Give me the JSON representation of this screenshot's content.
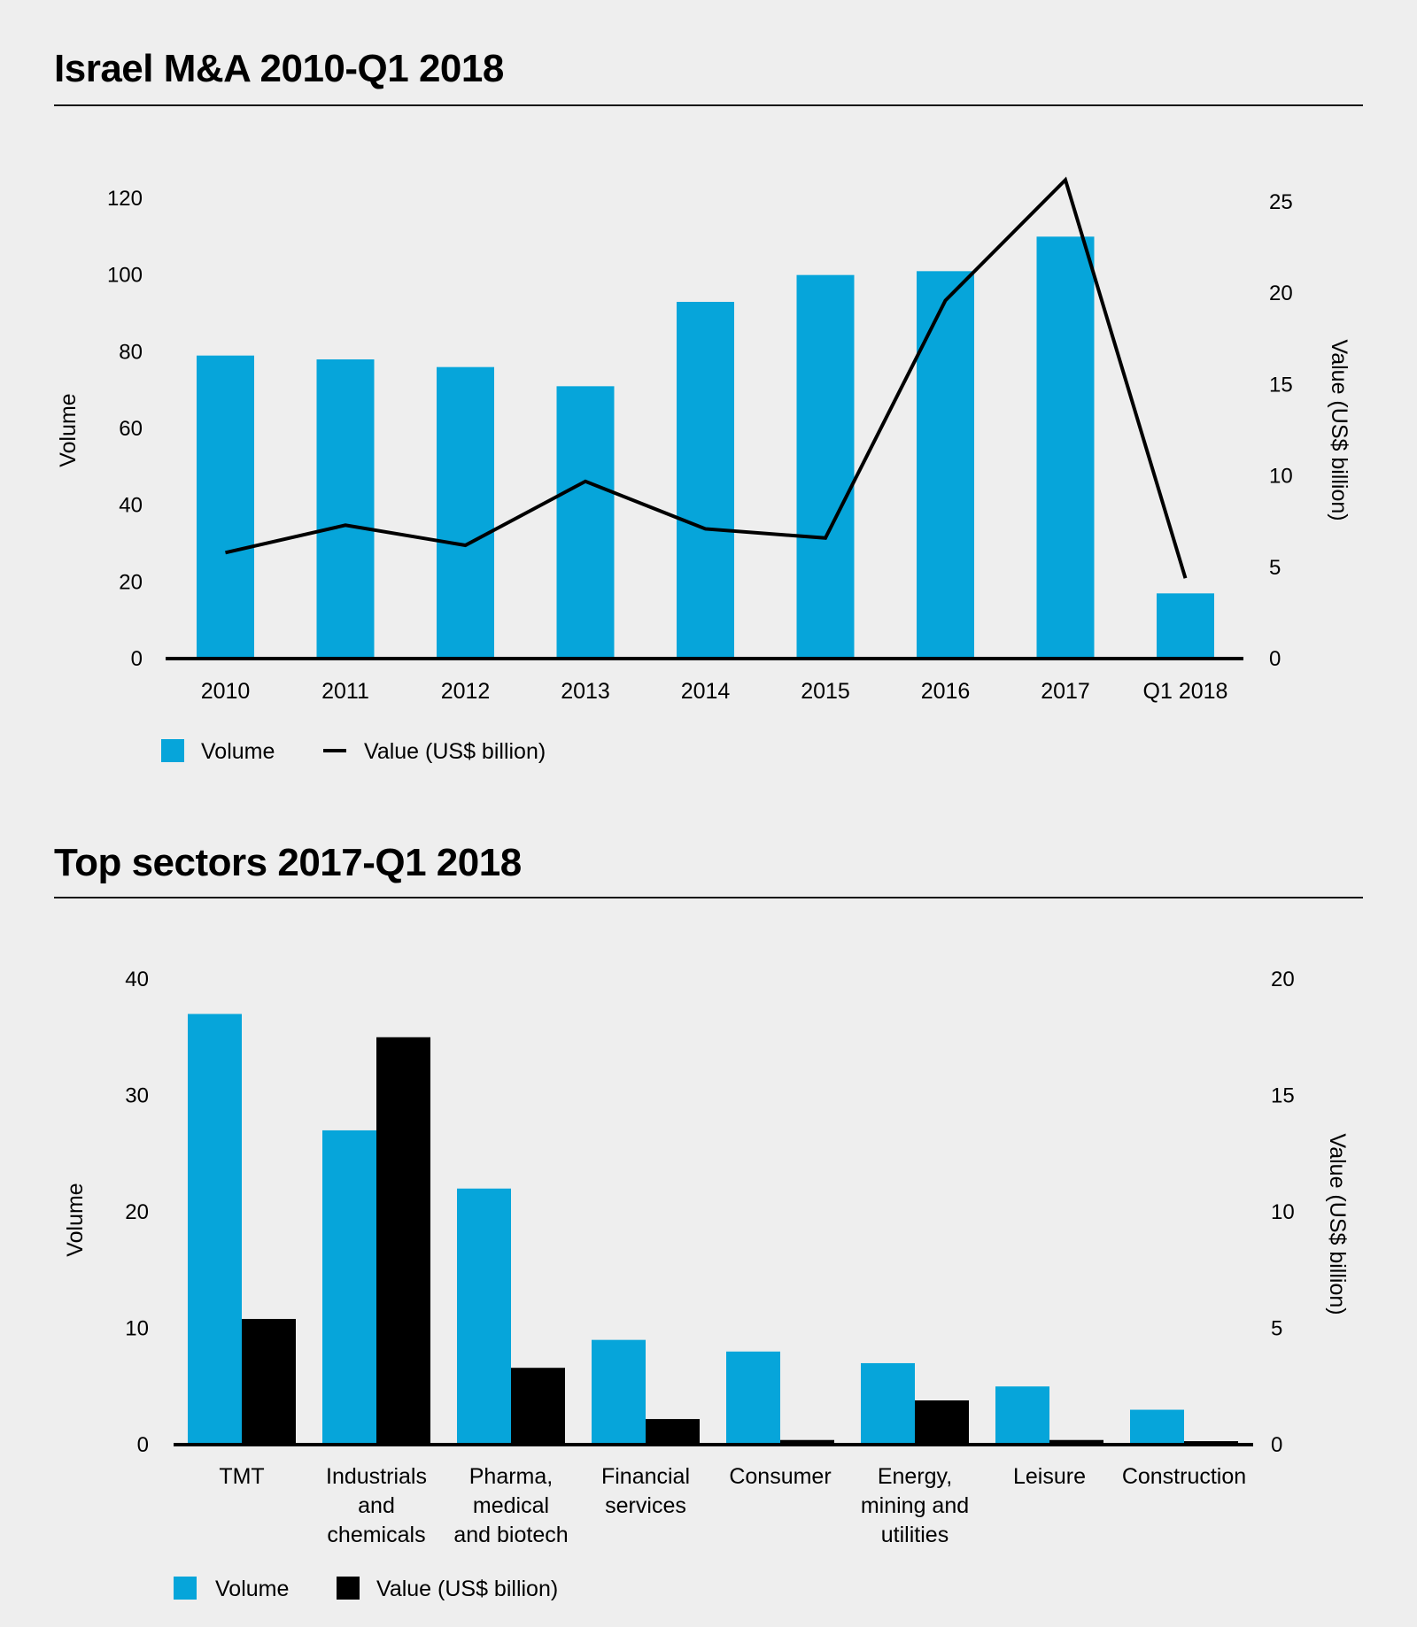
{
  "page": {
    "background": "#eeeeee",
    "colors": {
      "volume": "#06a5da",
      "value": "#000000",
      "axis": "#000000"
    }
  },
  "chart_data": [
    {
      "id": "israel-ma",
      "type": "bar+line",
      "title": "Israel M&A 2010-Q1 2018",
      "categories": [
        "2010",
        "2011",
        "2012",
        "2013",
        "2014",
        "2015",
        "2016",
        "2017",
        "Q1 2018"
      ],
      "series": [
        {
          "name": "Volume",
          "type": "bar",
          "axis": "left",
          "values": [
            79,
            78,
            76,
            71,
            93,
            100,
            101,
            110,
            17
          ]
        },
        {
          "name": "Value (US$ billion)",
          "type": "line",
          "axis": "right",
          "values": [
            5.8,
            7.3,
            6.2,
            9.7,
            7.1,
            6.6,
            19.6,
            26.2,
            4.4
          ]
        }
      ],
      "ylabel": "Volume",
      "ylim": [
        0,
        120
      ],
      "yticks": [
        0,
        20,
        40,
        60,
        80,
        100,
        120
      ],
      "y2label": "Value (US$ billion)",
      "y2lim": [
        0,
        25
      ],
      "y2ticks": [
        0,
        5,
        10,
        15,
        20,
        25
      ],
      "grid": false,
      "legend": {
        "placement": "bottom-left",
        "items": [
          {
            "label": "Volume",
            "marker": "square"
          },
          {
            "label": "Value (US$ billion)",
            "marker": "line"
          }
        ]
      }
    },
    {
      "id": "top-sectors",
      "type": "bar",
      "title": "Top sectors 2017-Q1 2018",
      "categories": [
        [
          "TMT"
        ],
        [
          "Industrials",
          "and",
          "chemicals"
        ],
        [
          "Pharma,",
          "medical",
          "and biotech"
        ],
        [
          "Financial",
          "services"
        ],
        [
          "Consumer"
        ],
        [
          "Energy,",
          "mining and",
          "utilities"
        ],
        [
          "Leisure"
        ],
        [
          "Construction"
        ]
      ],
      "series": [
        {
          "name": "Volume",
          "axis": "left",
          "values": [
            37,
            27,
            22,
            9,
            8,
            7,
            5,
            3
          ]
        },
        {
          "name": "Value (US$ billion)",
          "axis": "right",
          "values": [
            5.4,
            17.5,
            3.3,
            1.1,
            0.2,
            1.9,
            0.2,
            0.15
          ]
        }
      ],
      "ylabel": "Volume",
      "ylim": [
        0,
        40
      ],
      "yticks": [
        0,
        10,
        20,
        30,
        40
      ],
      "y2label": "Value (US$ billion)",
      "y2lim": [
        0,
        20
      ],
      "y2ticks": [
        0,
        5,
        10,
        15,
        20
      ],
      "grid": false,
      "legend": {
        "placement": "bottom-left",
        "items": [
          {
            "label": "Volume",
            "marker": "square"
          },
          {
            "label": "Value (US$ billion)",
            "marker": "square"
          }
        ]
      }
    }
  ]
}
